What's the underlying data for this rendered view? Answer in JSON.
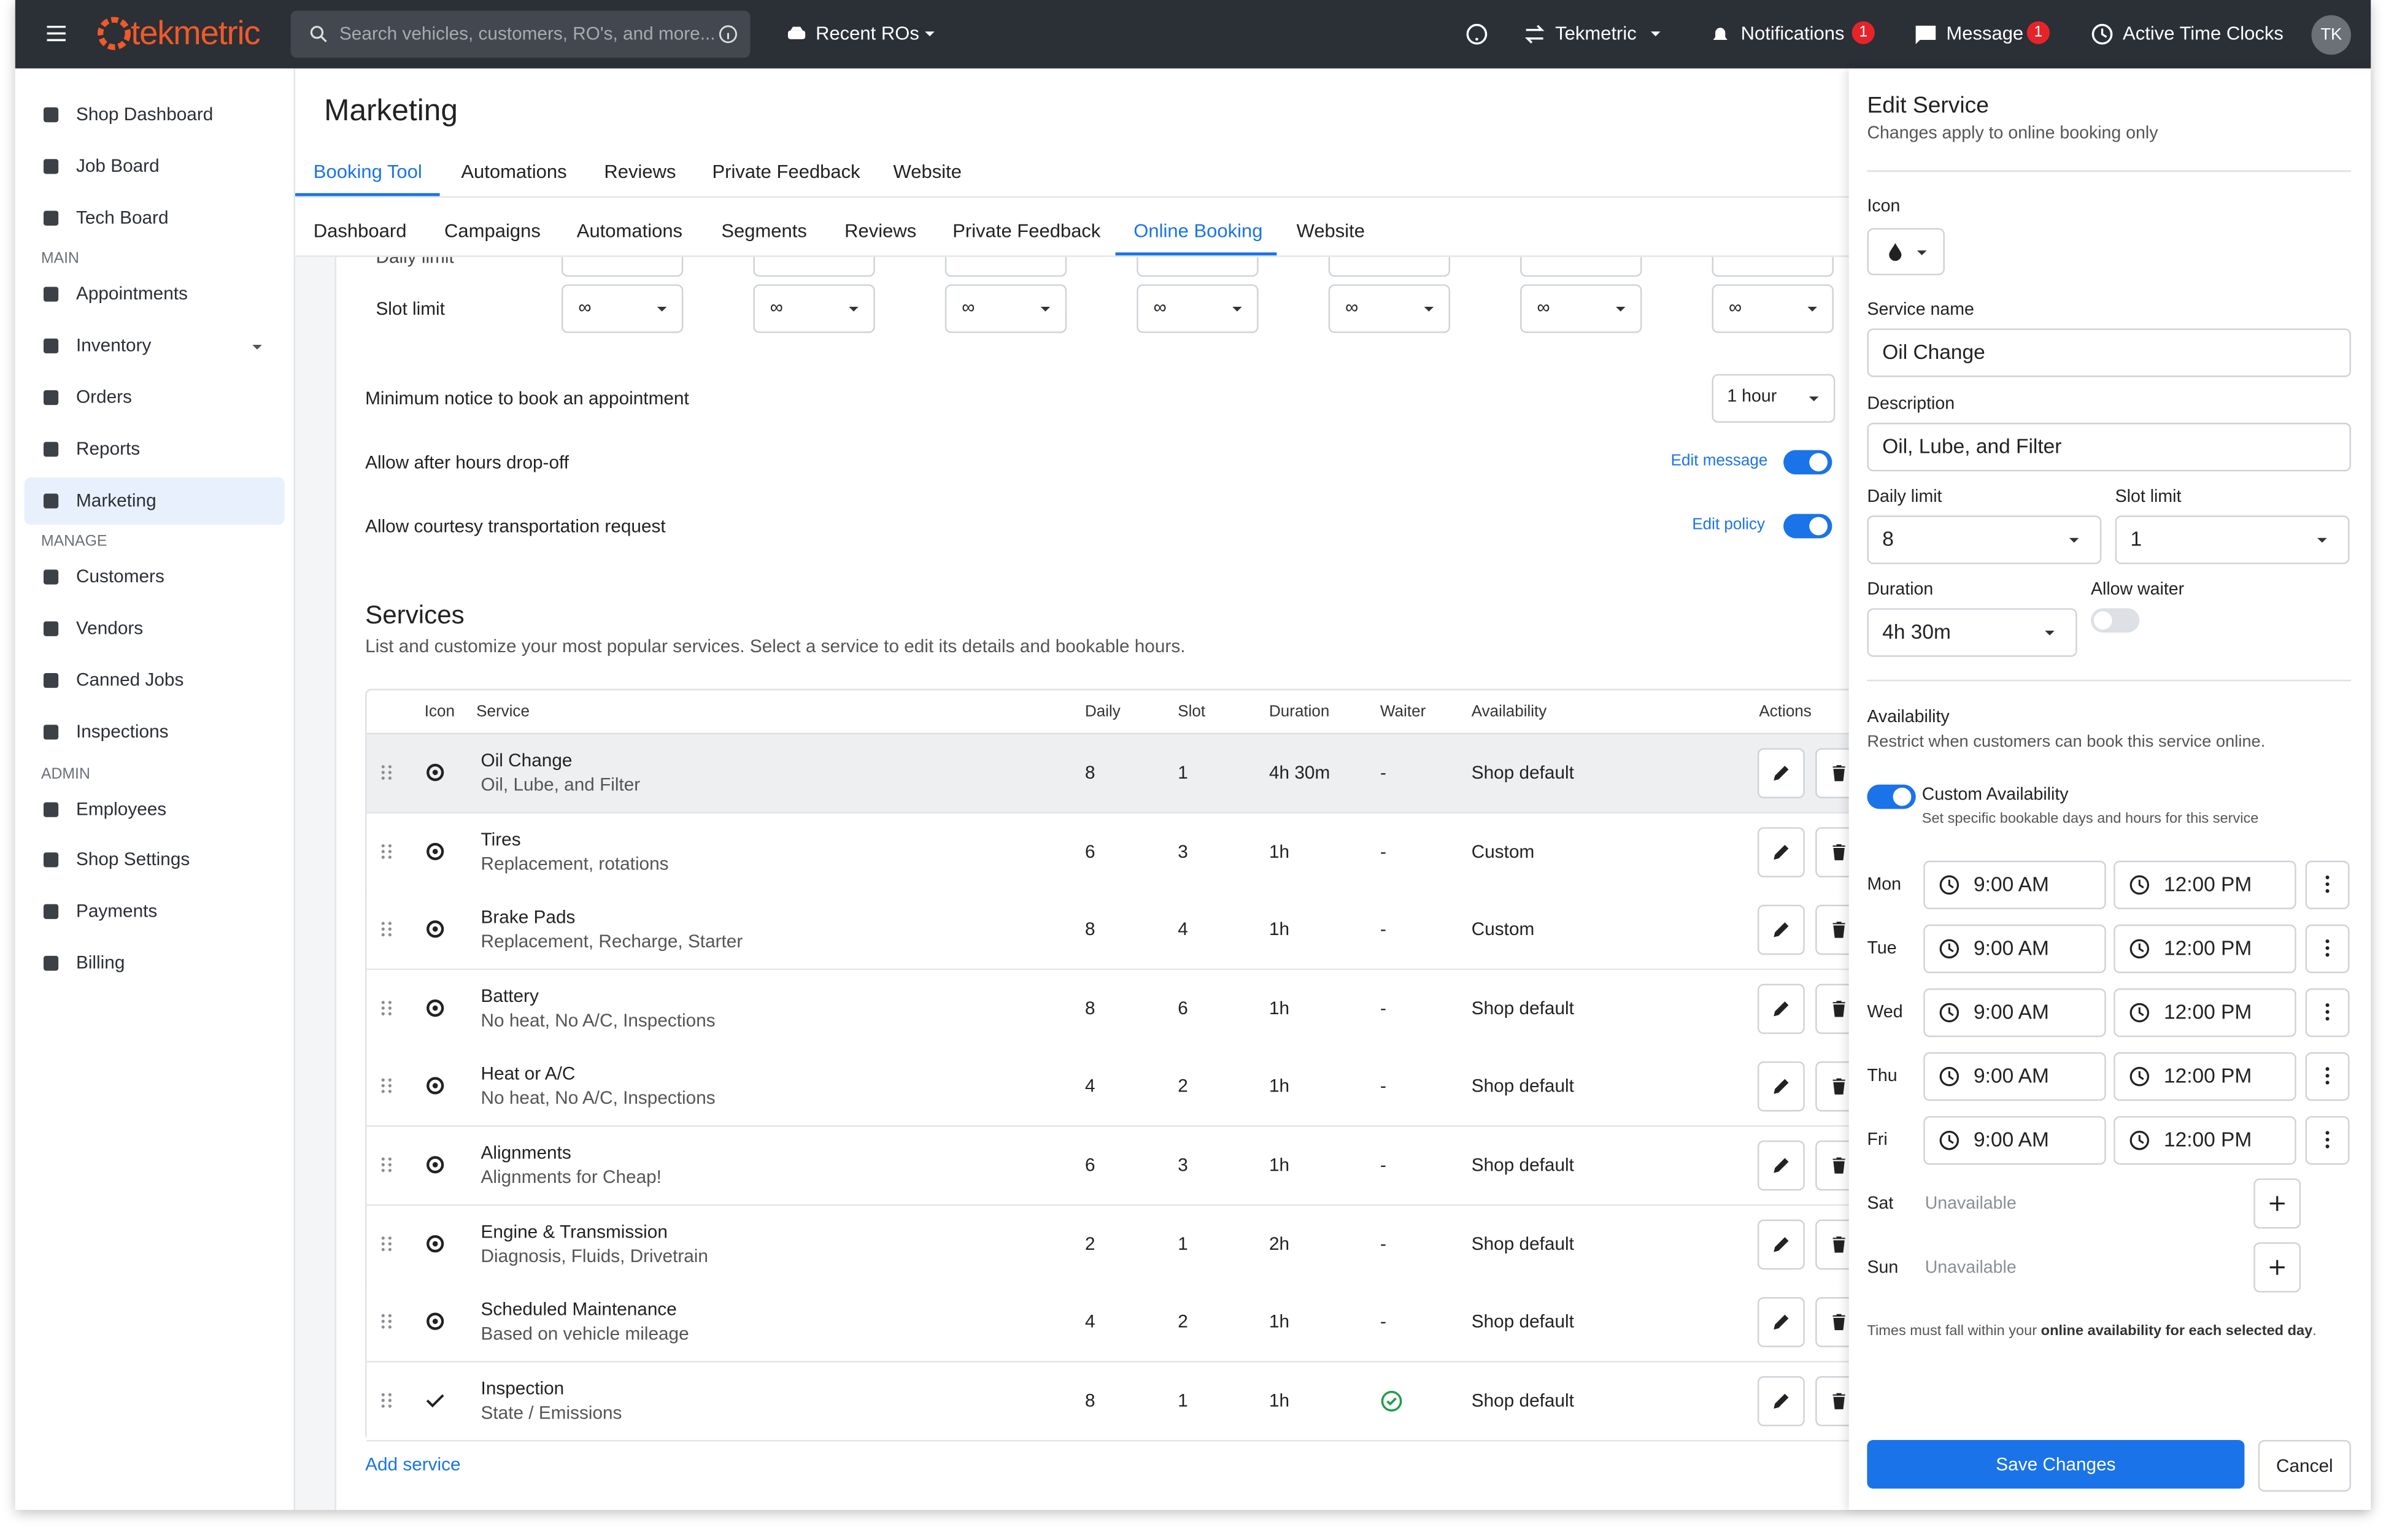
{
  "topbar": {
    "logo": "tekmetric",
    "search_placeholder": "Search vehicles, customers, RO's, and more...",
    "recent_ros": "Recent ROs",
    "shop": "Tekmetric",
    "notifications": "Notifications",
    "notifications_count": "1",
    "message": "Message",
    "message_count": "1",
    "active_time_clocks": "Active Time Clocks",
    "avatar": "TK"
  },
  "sidebar": {
    "groups": [
      {
        "items": [
          "Shop Dashboard",
          "Job Board",
          "Tech Board"
        ]
      },
      {
        "heading": "MAIN",
        "items": [
          "Appointments",
          "Inventory",
          "Orders",
          "Reports",
          "Marketing"
        ]
      },
      {
        "heading": "MANAGE",
        "items": [
          "Customers",
          "Vendors",
          "Canned Jobs",
          "Inspections"
        ]
      },
      {
        "heading": "ADMIN",
        "items": [
          "Employees",
          "Shop Settings",
          "Payments",
          "Billing"
        ]
      }
    ]
  },
  "header": {
    "title": "Marketing",
    "tabs": [
      "Booking Tool",
      "Automations",
      "Reviews",
      "Private Feedback",
      "Website"
    ],
    "subtabs": [
      "Dashboard",
      "Campaigns",
      "Automations",
      "Segments",
      "Reviews",
      "Private Feedback",
      "Online Booking",
      "Website"
    ]
  },
  "settings": {
    "daily_limit": "Daily limit",
    "slot_limit": "Slot limit",
    "slot_options": [
      "∞",
      "∞",
      "∞",
      "∞",
      "∞",
      "∞",
      "∞"
    ],
    "min_notice": "Minimum notice to book an appointment",
    "min_notice_value": "1 hour",
    "after_hours": "Allow after hours drop-off",
    "after_hours_link": "Edit message",
    "courtesy": "Allow courtesy transportation request",
    "courtesy_link": "Edit policy"
  },
  "services": {
    "title": "Services",
    "subtitle": "List and customize your most popular services. Select a service to edit its details and bookable hours.",
    "columns": [
      "Icon",
      "Service",
      "Daily",
      "Slot",
      "Duration",
      "Waiter",
      "Availability",
      "Actions"
    ],
    "rows": [
      {
        "name": "Oil Change",
        "desc": "Oil, Lube, and Filter",
        "daily": 8,
        "slot": 1,
        "duration": "4h 30m",
        "waiter": "-",
        "availability": "Shop default"
      },
      {
        "name": "Tires",
        "desc": "Replacement, rotations",
        "daily": 6,
        "slot": 3,
        "duration": "1h",
        "waiter": "-",
        "availability": "Custom"
      },
      {
        "name": "Brake Pads",
        "desc": "Replacement, Recharge, Starter",
        "daily": 8,
        "slot": 4,
        "duration": "1h",
        "waiter": "-",
        "availability": "Custom"
      },
      {
        "name": "Battery",
        "desc": "No heat, No A/C, Inspections",
        "daily": 8,
        "slot": 6,
        "duration": "1h",
        "waiter": "-",
        "availability": "Shop default"
      },
      {
        "name": "Heat or A/C",
        "desc": "No heat, No A/C, Inspections",
        "daily": 4,
        "slot": 2,
        "duration": "1h",
        "waiter": "-",
        "availability": "Shop default"
      },
      {
        "name": "Alignments",
        "desc": "Alignments for Cheap!",
        "daily": 6,
        "slot": 3,
        "duration": "1h",
        "waiter": "-",
        "availability": "Shop default"
      },
      {
        "name": "Engine & Transmission",
        "desc": "Diagnosis, Fluids, Drivetrain",
        "daily": 2,
        "slot": 1,
        "duration": "2h",
        "waiter": "-",
        "availability": "Shop default"
      },
      {
        "name": "Scheduled Maintenance",
        "desc": "Based on vehicle mileage",
        "daily": 4,
        "slot": 2,
        "duration": "1h",
        "waiter": "-",
        "availability": "Shop default"
      },
      {
        "name": "Inspection",
        "desc": "State / Emissions",
        "daily": 8,
        "slot": 1,
        "duration": "1h",
        "waiter": true,
        "availability": "Shop default"
      }
    ],
    "add_service": "Add service"
  },
  "panel": {
    "title": "Edit Service",
    "subtitle": "Changes apply to online booking only",
    "icon_label": "Icon",
    "name_label": "Service name",
    "name_value": "Oil Change",
    "desc_label": "Description",
    "desc_value": "Oil, Lube, and Filter",
    "daily_label": "Daily limit",
    "daily_value": "8",
    "slot_label": "Slot limit",
    "slot_value": "1",
    "duration_label": "Duration",
    "duration_value": "4h 30m",
    "waiter_label": "Allow waiter",
    "availability_title": "Availability",
    "availability_desc": "Restrict when customers can book this service online.",
    "custom_label": "Custom Availability",
    "custom_desc": "Set specific bookable days and hours for this service",
    "days": [
      {
        "day": "Mon",
        "start": "9:00 AM",
        "end": "12:00 PM"
      },
      {
        "day": "Tue",
        "start": "9:00 AM",
        "end": "12:00 PM"
      },
      {
        "day": "Wed",
        "start": "9:00 AM",
        "end": "12:00 PM"
      },
      {
        "day": "Thu",
        "start": "9:00 AM",
        "end": "12:00 PM"
      },
      {
        "day": "Fri",
        "start": "9:00 AM",
        "end": "12:00 PM"
      },
      {
        "day": "Sat",
        "status": "Unavailable"
      },
      {
        "day": "Sun",
        "status": "Unavailable"
      }
    ],
    "footnote": [
      "Times must fall within your ",
      "online availability for each selected day",
      "."
    ],
    "save": "Save Changes",
    "cancel": "Cancel"
  }
}
